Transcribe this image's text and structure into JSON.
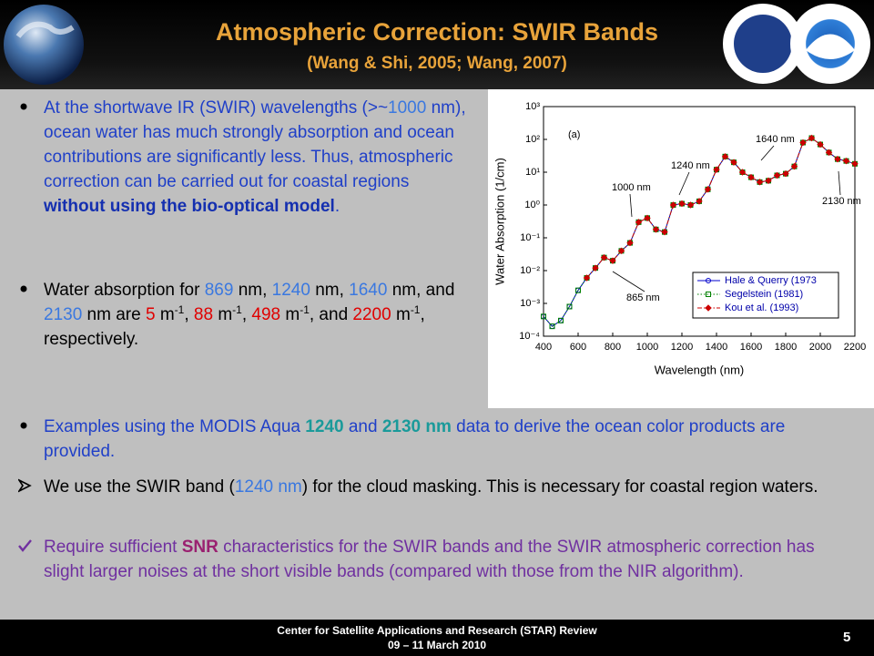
{
  "header": {
    "title": "Atmospheric Correction: SWIR Bands",
    "subtitle": "(Wang & Shi, 2005; Wang, 2007)"
  },
  "bullets": [
    {
      "runs": [
        {
          "text": "At the shortwave IR (SWIR) wavelengths (>~",
          "color": "#2040c8"
        },
        {
          "text": "1000",
          "color": "#3a78e0"
        },
        {
          "text": " nm), ocean water has much strongly absorption and ocean contributions are significantly less.  Thus, atmospheric correction can be carried out for coastal regions ",
          "color": "#2040c8"
        },
        {
          "text": "without using the bio-optical model",
          "color": "#1530b0",
          "bold": true
        },
        {
          "text": ".",
          "color": "#2040c8"
        }
      ]
    },
    {
      "runs": [
        {
          "text": "Water absorption for ",
          "color": "#000000"
        },
        {
          "text": "869",
          "color": "#3a78e0"
        },
        {
          "text": " nm, ",
          "color": "#000000"
        },
        {
          "text": "1240",
          "color": "#3a78e0"
        },
        {
          "text": " nm, ",
          "color": "#000000"
        },
        {
          "text": "1640",
          "color": "#3a78e0"
        },
        {
          "text": " nm, and ",
          "color": "#000000"
        },
        {
          "text": "2130",
          "color": "#3a78e0"
        },
        {
          "text": " nm are ",
          "color": "#000000"
        },
        {
          "text": "5",
          "color": "#e00000"
        },
        {
          "text": " m",
          "color": "#000000"
        },
        {
          "text": "-1",
          "color": "#000000",
          "sup": true
        },
        {
          "text": ", ",
          "color": "#000000"
        },
        {
          "text": "88",
          "color": "#e00000"
        },
        {
          "text": " m",
          "color": "#000000"
        },
        {
          "text": "-1",
          "color": "#000000",
          "sup": true
        },
        {
          "text": ", ",
          "color": "#000000"
        },
        {
          "text": "498",
          "color": "#e00000"
        },
        {
          "text": " m",
          "color": "#000000"
        },
        {
          "text": "-1",
          "color": "#000000",
          "sup": true
        },
        {
          "text": ", and ",
          "color": "#000000"
        },
        {
          "text": "2200",
          "color": "#e00000"
        },
        {
          "text": " m",
          "color": "#000000"
        },
        {
          "text": "-1",
          "color": "#000000",
          "sup": true
        },
        {
          "text": ", respectively.",
          "color": "#000000"
        }
      ]
    },
    {
      "runs": [
        {
          "text": "Examples using the MODIS Aqua ",
          "color": "#2040c8"
        },
        {
          "text": "1240",
          "color": "#1a9a9a",
          "bold": true
        },
        {
          "text": " and ",
          "color": "#2040c8"
        },
        {
          "text": "2130 nm",
          "color": "#1a9a9a",
          "bold": true
        },
        {
          "text": " data to derive the ocean color products are provided.",
          "color": "#2040c8"
        }
      ]
    },
    {
      "runs": [
        {
          "text": "We use the SWIR band (",
          "color": "#000000"
        },
        {
          "text": "1240 nm",
          "color": "#3a78e0"
        },
        {
          "text": ") for the cloud masking.  This is necessary for coastal region waters.",
          "color": "#000000"
        }
      ]
    },
    {
      "runs": [
        {
          "text": "Require sufficient ",
          "color": "#7030a0"
        },
        {
          "text": "SNR",
          "color": "#9a2070",
          "bold": true
        },
        {
          "text": " characteristics for the SWIR bands and the SWIR atmospheric correction has slight larger noises at the short visible bands (compared with those from the NIR algorithm).",
          "color": "#7030a0"
        }
      ]
    }
  ],
  "chart_data": {
    "type": "line",
    "xlabel": "Wavelength (nm)",
    "ylabel": "Water Absorption (1/cm)",
    "x": [
      400,
      450,
      500,
      550,
      600,
      650,
      700,
      750,
      800,
      850,
      900,
      950,
      1000,
      1050,
      1100,
      1150,
      1200,
      1250,
      1300,
      1350,
      1400,
      1450,
      1500,
      1550,
      1600,
      1650,
      1700,
      1750,
      1800,
      1850,
      1900,
      1950,
      2000,
      2050,
      2100,
      2150,
      2200
    ],
    "series": [
      {
        "name": "Hale & Querry (1973",
        "color": "#0000cc",
        "marker": "circle",
        "line": "solid",
        "values": [
          0.0004,
          0.0002,
          0.0003,
          0.0008,
          0.0025,
          0.006,
          0.012,
          0.025,
          0.02,
          0.04,
          0.07,
          0.3,
          0.4,
          0.18,
          0.15,
          1.0,
          1.1,
          1.0,
          1.3,
          3,
          12,
          30,
          20,
          10,
          7,
          5,
          5.5,
          8,
          9,
          15,
          80,
          110,
          70,
          40,
          25,
          22,
          18
        ]
      },
      {
        "name": "Segelstein (1981)",
        "color": "#008000",
        "marker": "square",
        "line": "dotted",
        "values": [
          0.0004,
          0.0002,
          0.0003,
          0.0008,
          0.0025,
          0.006,
          0.012,
          0.025,
          0.02,
          0.04,
          0.07,
          0.3,
          0.4,
          0.18,
          0.15,
          1.0,
          1.1,
          1.0,
          1.3,
          3,
          12,
          30,
          20,
          10,
          7,
          5,
          5.5,
          8,
          9,
          15,
          80,
          110,
          70,
          40,
          25,
          22,
          18
        ]
      },
      {
        "name": "Kou et al. (1993)",
        "color": "#cc0000",
        "marker": "diamond",
        "line": "dashdot",
        "values": [
          null,
          null,
          null,
          null,
          null,
          0.006,
          0.012,
          0.025,
          0.02,
          0.04,
          0.07,
          0.3,
          0.4,
          0.18,
          0.15,
          1.0,
          1.1,
          1.0,
          1.3,
          3,
          12,
          30,
          20,
          10,
          7,
          5,
          5.5,
          8,
          9,
          15,
          80,
          110,
          70,
          40,
          25,
          22,
          18
        ]
      }
    ],
    "xlim": [
      400,
      2200
    ],
    "xticks": [
      400,
      600,
      800,
      1000,
      1200,
      1400,
      1600,
      1800,
      2000,
      2200
    ],
    "ylim": [
      0.0001,
      1000
    ],
    "log_y": true,
    "yticks": [
      {
        "value": 1000,
        "label": "10³"
      },
      {
        "value": 100,
        "label": "10²"
      },
      {
        "value": 10,
        "label": "10¹"
      },
      {
        "value": 1,
        "label": "10⁰"
      },
      {
        "value": 0.1,
        "label": "10⁻¹"
      },
      {
        "value": 0.01,
        "label": "10⁻²"
      },
      {
        "value": 0.001,
        "label": "10⁻³"
      },
      {
        "value": 0.0001,
        "label": "10⁻⁴"
      }
    ],
    "grid": false,
    "legend": "lower right",
    "annotations": [
      "(a)",
      "1640 nm",
      "1240 nm",
      "1000 nm",
      "2130 nm",
      "865 nm"
    ]
  },
  "footer": {
    "line1": "Center for Satellite Applications and Research (STAR) Review",
    "line2": "09 – 11 March 2010",
    "page": "5"
  }
}
